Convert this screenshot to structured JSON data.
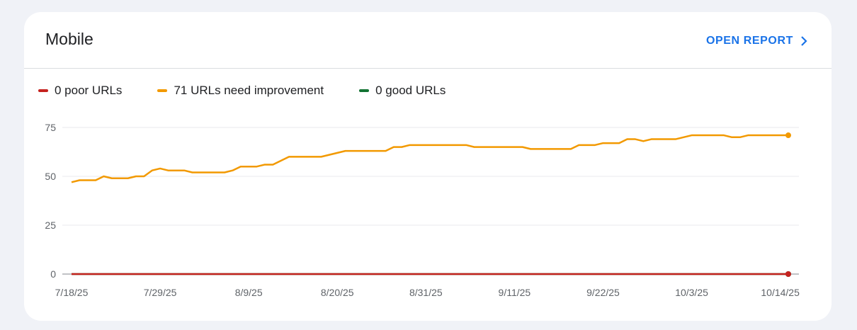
{
  "header": {
    "title": "Mobile",
    "open_report": "OPEN REPORT"
  },
  "legend": [
    {
      "label": "0 poor URLs",
      "color": "#c5221f"
    },
    {
      "label": "71 URLs need improvement",
      "color": "#f29900"
    },
    {
      "label": "0 good URLs",
      "color": "#137333"
    }
  ],
  "chart_data": {
    "type": "line",
    "x_start": "7/18/25",
    "x_end": "10/14/25",
    "x_unit": "days since 7/18/25",
    "x_ticks": [
      "7/18/25",
      "7/29/25",
      "8/9/25",
      "8/20/25",
      "8/31/25",
      "9/11/25",
      "9/22/25",
      "10/3/25",
      "10/14/25"
    ],
    "x_tick_days": [
      0,
      11,
      22,
      33,
      44,
      55,
      66,
      77,
      88
    ],
    "y_ticks": [
      "0",
      "25",
      "50",
      "75"
    ],
    "ylim": [
      0,
      75
    ],
    "xlim": [
      0,
      89
    ],
    "series": [
      {
        "name": "URLs need improvement",
        "color": "#f29900",
        "points": [
          [
            0,
            47
          ],
          [
            1,
            48
          ],
          [
            3,
            48
          ],
          [
            4,
            50
          ],
          [
            5,
            49
          ],
          [
            7,
            49
          ],
          [
            8,
            50
          ],
          [
            9,
            50
          ],
          [
            10,
            53
          ],
          [
            11,
            54
          ],
          [
            12,
            53
          ],
          [
            14,
            53
          ],
          [
            15,
            52
          ],
          [
            19,
            52
          ],
          [
            20,
            53
          ],
          [
            21,
            55
          ],
          [
            23,
            55
          ],
          [
            24,
            56
          ],
          [
            25,
            56
          ],
          [
            27,
            60
          ],
          [
            31,
            60
          ],
          [
            34,
            63
          ],
          [
            39,
            63
          ],
          [
            40,
            65
          ],
          [
            41,
            65
          ],
          [
            42,
            66
          ],
          [
            49,
            66
          ],
          [
            50,
            65
          ],
          [
            56,
            65
          ],
          [
            57,
            64
          ],
          [
            62,
            64
          ],
          [
            63,
            66
          ],
          [
            65,
            66
          ],
          [
            66,
            67
          ],
          [
            68,
            67
          ],
          [
            69,
            69
          ],
          [
            70,
            69
          ],
          [
            71,
            68
          ],
          [
            72,
            69
          ],
          [
            75,
            69
          ],
          [
            77,
            71
          ],
          [
            81,
            71
          ],
          [
            82,
            70
          ],
          [
            83,
            70
          ],
          [
            84,
            71
          ],
          [
            89,
            71
          ]
        ]
      },
      {
        "name": "good URLs",
        "color": "#137333",
        "points": [
          [
            0,
            0
          ],
          [
            89,
            0
          ]
        ]
      },
      {
        "name": "poor URLs",
        "color": "#c5221f",
        "points": [
          [
            0,
            0
          ],
          [
            89,
            0
          ]
        ]
      }
    ]
  }
}
